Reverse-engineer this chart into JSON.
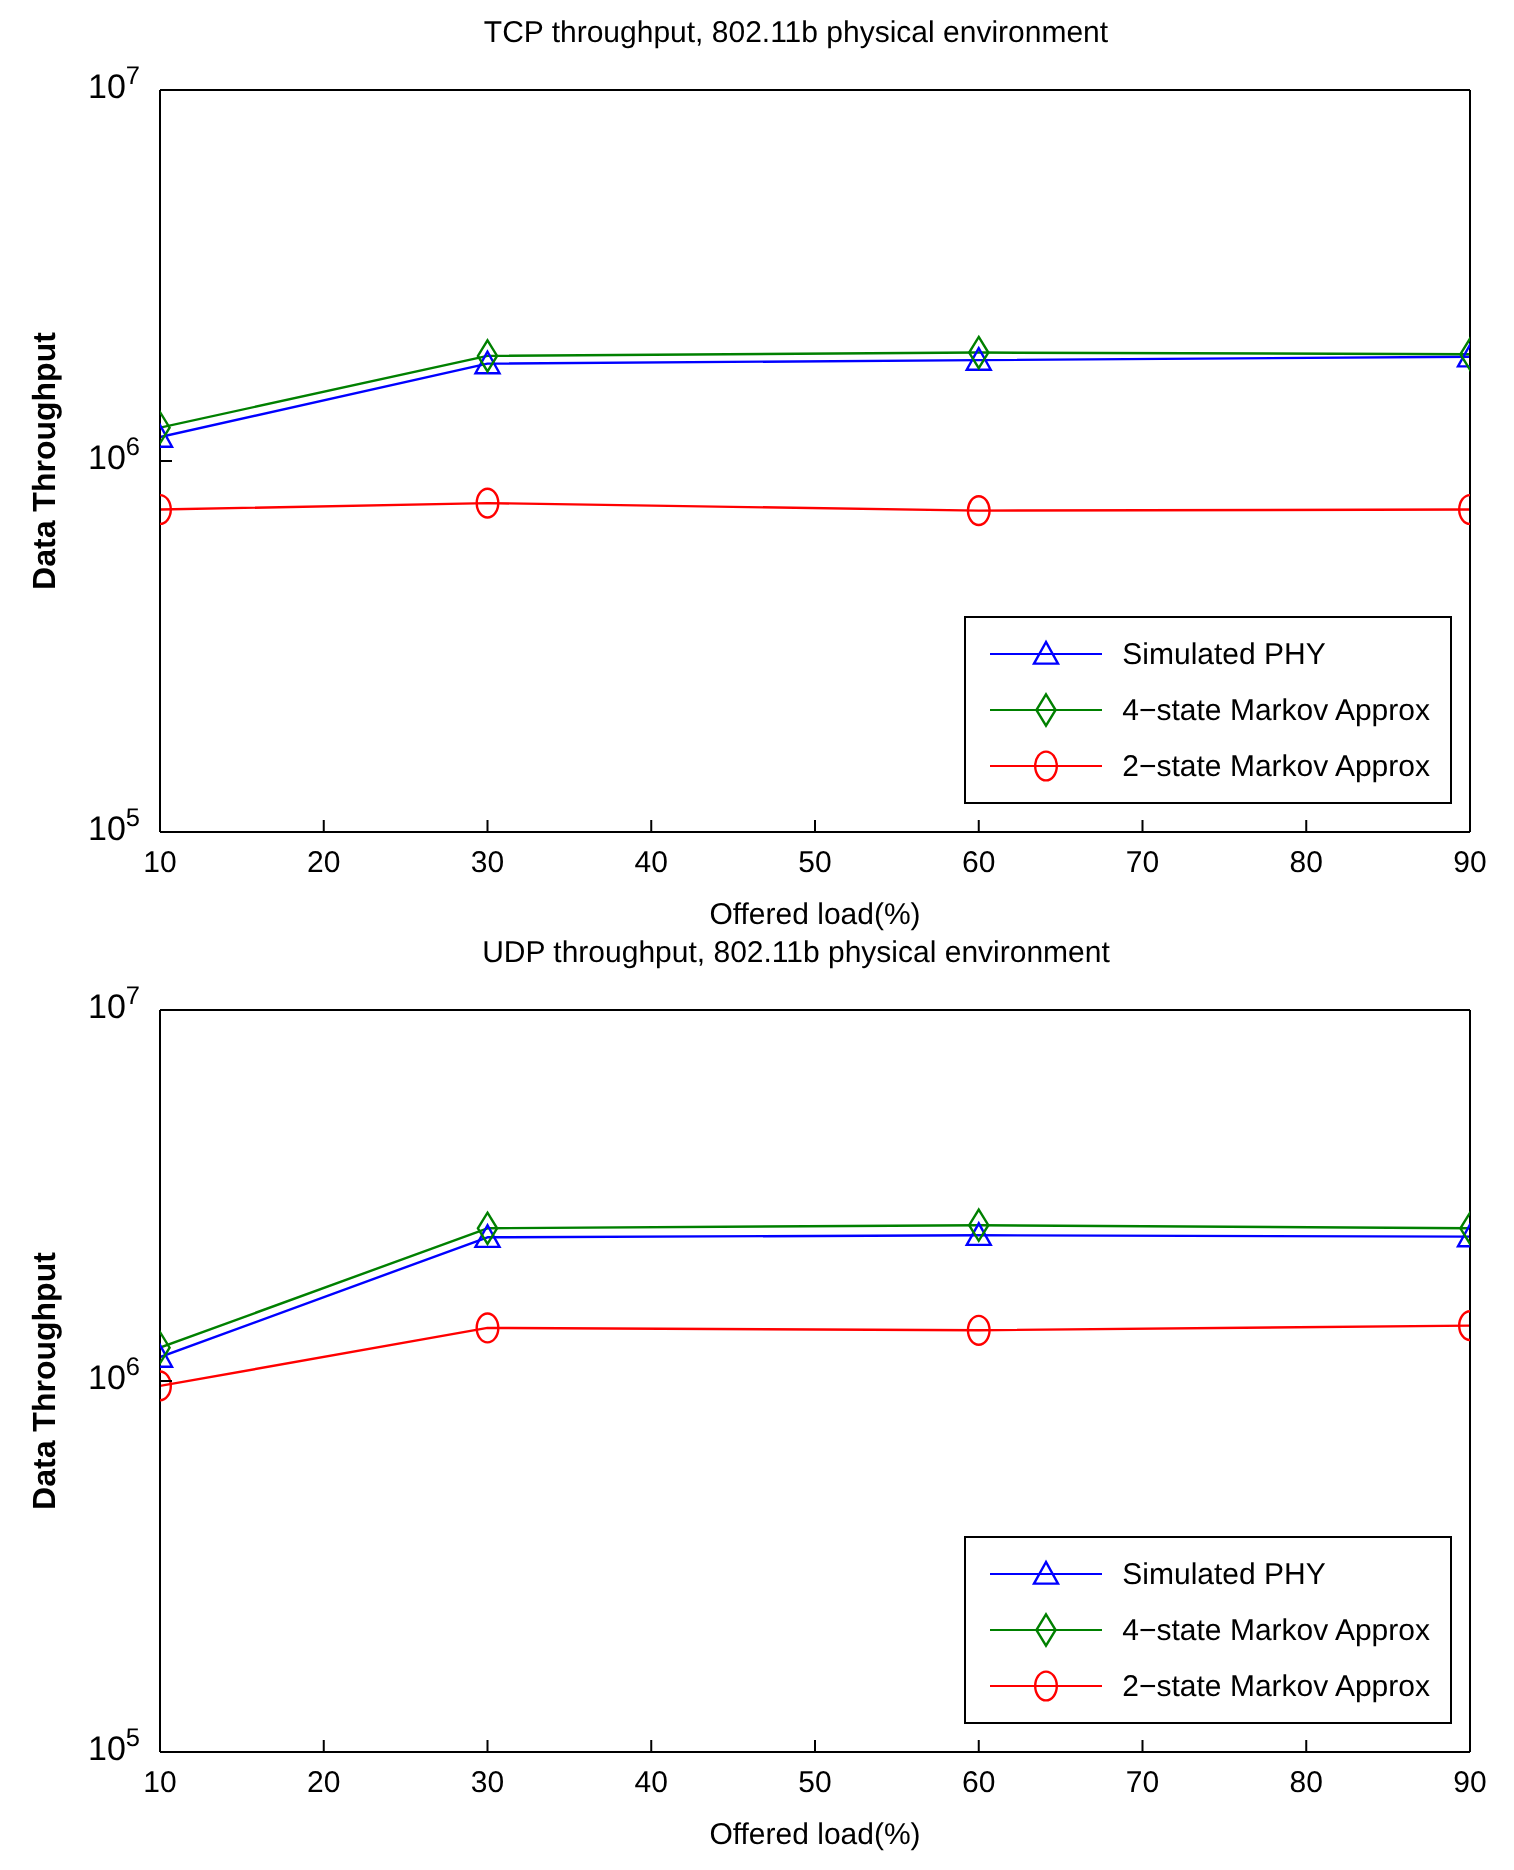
{
  "chart_data": [
    {
      "type": "line",
      "title": "TCP throughput, 802.11b physical environment",
      "xlabel": "Offered load(%)",
      "ylabel": "Data Throughput",
      "x": [
        10,
        30,
        60,
        90
      ],
      "xlim": [
        10,
        90
      ],
      "xticks": [
        10,
        20,
        30,
        40,
        50,
        60,
        70,
        80,
        90
      ],
      "ylim": [
        100000,
        10000000
      ],
      "yticks": [
        {
          "value": 100000,
          "label": "10$^{5}$"
        },
        {
          "value": 1000000,
          "label": "10$^{6}$"
        },
        {
          "value": 10000000,
          "label": "10$^{7}$"
        }
      ],
      "log": "y",
      "grid": false,
      "legend": "bottom right",
      "series": [
        {
          "name": "Simulated PHY",
          "color": "#0000ff",
          "marker": "triangle",
          "values": [
            1160000,
            1830000,
            1870000,
            1910000
          ]
        },
        {
          "name": "4−state Markov Approx",
          "color": "#008000",
          "marker": "diamond",
          "values": [
            1230000,
            1920000,
            1960000,
            1940000
          ]
        },
        {
          "name": "2−state Markov Approx",
          "color": "#ff0000",
          "marker": "circle",
          "values": [
            740000,
            770000,
            735000,
            740000
          ]
        }
      ]
    },
    {
      "type": "line",
      "title": "UDP throughput, 802.11b physical environment",
      "xlabel": "Offered load(%)",
      "ylabel": "Data Throughput",
      "x": [
        10,
        30,
        60,
        90
      ],
      "xlim": [
        10,
        90
      ],
      "xticks": [
        10,
        20,
        30,
        40,
        50,
        60,
        70,
        80,
        90
      ],
      "ylim": [
        100000,
        10000000
      ],
      "yticks": [
        {
          "value": 100000,
          "label": "10$^{5}$"
        },
        {
          "value": 1000000,
          "label": "10$^{6}$"
        },
        {
          "value": 10000000,
          "label": "10$^{7}$"
        }
      ],
      "log": "y",
      "grid": false,
      "legend": "bottom right",
      "series": [
        {
          "name": "Simulated PHY",
          "color": "#0000ff",
          "marker": "triangle",
          "values": [
            1160000,
            2440000,
            2470000,
            2450000
          ]
        },
        {
          "name": "4−state Markov Approx",
          "color": "#008000",
          "marker": "diamond",
          "values": [
            1230000,
            2580000,
            2630000,
            2580000
          ]
        },
        {
          "name": "2−state Markov Approx",
          "color": "#ff0000",
          "marker": "circle",
          "values": [
            970000,
            1390000,
            1370000,
            1410000
          ]
        }
      ]
    }
  ]
}
